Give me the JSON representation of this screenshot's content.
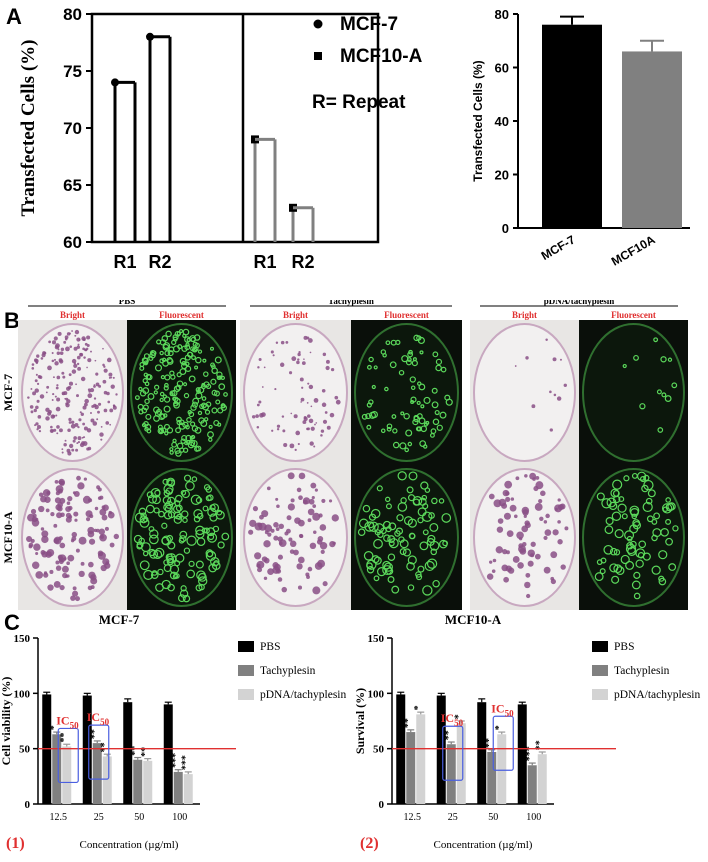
{
  "panel_labels": {
    "a": "A",
    "b": "B",
    "c": "C"
  },
  "chart_data": [
    {
      "id": "A1",
      "type": "scatter",
      "ylabel": "Transfected Cells (%)",
      "ylim": [
        60,
        80
      ],
      "yticks": [
        "60",
        "65",
        "70",
        "75",
        "80"
      ],
      "categories": [
        "R1",
        "R2",
        "R1",
        "R2"
      ],
      "groups": [
        {
          "name": "MCF-7",
          "x": [
            "R1",
            "R2"
          ],
          "values": [
            74,
            78
          ],
          "color": "#000000",
          "marker": "circle"
        },
        {
          "name": "MCF10-A",
          "x": [
            "R1",
            "R2"
          ],
          "values": [
            69,
            63
          ],
          "color": "#808080",
          "marker": "square"
        }
      ],
      "legend": [
        {
          "label": "MCF-7",
          "marker": "circle"
        },
        {
          "label": "MCF10-A",
          "marker": "square"
        }
      ],
      "note": "R= Repeat"
    },
    {
      "id": "A2",
      "type": "bar",
      "ylabel": "Transfected Cells (%)",
      "ylim": [
        0,
        80
      ],
      "yticks": [
        "0",
        "20",
        "40",
        "60",
        "80"
      ],
      "categories": [
        "MCF-7",
        "MCF10A"
      ],
      "values": [
        76,
        66
      ],
      "errors": [
        3,
        4
      ],
      "colors": [
        "#000000",
        "#808080"
      ]
    },
    {
      "id": "C1",
      "type": "bar",
      "title": "MCF-7",
      "ylabel": "Cell viability (%)",
      "xlabel": "Concentration (µg/ml)",
      "ylim": [
        0,
        150
      ],
      "yticks": [
        "0",
        "50",
        "100",
        "150"
      ],
      "categories": [
        "12.5",
        "25",
        "50",
        "100"
      ],
      "series": [
        {
          "name": "PBS",
          "color": "#000000",
          "values": [
            99,
            98,
            92,
            90
          ],
          "errors": [
            2,
            2,
            3,
            2
          ],
          "stars": [
            "",
            "",
            "",
            ""
          ]
        },
        {
          "name": "Tachyplesin",
          "color": "#808080",
          "values": [
            63,
            55,
            40,
            29
          ],
          "errors": [
            2,
            2,
            2,
            2
          ],
          "stars": [
            "*",
            "**",
            "**",
            "***"
          ]
        },
        {
          "name": "pDNA/tachyplesin",
          "color": "#d3d3d3",
          "values": [
            52,
            43,
            39,
            27
          ],
          "errors": [
            2,
            2,
            2,
            2
          ],
          "stars": [
            "**",
            "**",
            "**",
            "***"
          ]
        }
      ],
      "reference_line": 50,
      "ic50_label": "IC",
      "ic50_sub": "50",
      "ic50_boxes": [
        {
          "category": "12.5",
          "series": "pDNA/tachyplesin"
        },
        {
          "category": "25",
          "series": "Tachyplesin"
        }
      ],
      "legend": [
        "PBS",
        "Tachyplesin",
        "pDNA/tachyplesin"
      ],
      "number_label": "(1)"
    },
    {
      "id": "C2",
      "type": "bar",
      "title": "MCF10-A",
      "ylabel": "Survival (%)",
      "xlabel": "Concentration (µg/ml)",
      "ylim": [
        0,
        150
      ],
      "yticks": [
        "0",
        "50",
        "100",
        "150"
      ],
      "categories": [
        "12.5",
        "25",
        "50",
        "100"
      ],
      "series": [
        {
          "name": "PBS",
          "color": "#000000",
          "values": [
            99,
            98,
            92,
            90
          ],
          "errors": [
            2,
            2,
            3,
            2
          ],
          "stars": [
            "",
            "",
            "",
            ""
          ]
        },
        {
          "name": "Tachyplesin",
          "color": "#808080",
          "values": [
            65,
            54,
            47,
            35
          ],
          "errors": [
            2,
            2,
            2,
            2
          ],
          "stars": [
            "**",
            "**",
            "**",
            "***"
          ]
        },
        {
          "name": "pDNA/tachyplesin",
          "color": "#d3d3d3",
          "values": [
            81,
            73,
            63,
            45
          ],
          "errors": [
            2,
            2,
            2,
            2
          ],
          "stars": [
            "*",
            "*",
            "*",
            "**"
          ]
        }
      ],
      "reference_line": 50,
      "ic50_label": "IC",
      "ic50_sub": "50",
      "ic50_boxes": [
        {
          "category": "25",
          "series": "Tachyplesin"
        },
        {
          "category": "50",
          "series": "pDNA/tachyplesin"
        }
      ],
      "legend": [
        "PBS",
        "Tachyplesin",
        "pDNA/tachyplesin"
      ],
      "number_label": "(2)"
    }
  ],
  "micrographs": {
    "groups": [
      "PBS",
      "Tachyplesin",
      "pDNA/tachyplesin"
    ],
    "sub_labels": [
      "Bright",
      "Fluorescent"
    ],
    "rows": [
      "MCF-7",
      "MCF10-A"
    ],
    "colony_density": [
      [
        0.95,
        0.35,
        0.05
      ],
      [
        0.6,
        0.4,
        0.35
      ]
    ]
  }
}
